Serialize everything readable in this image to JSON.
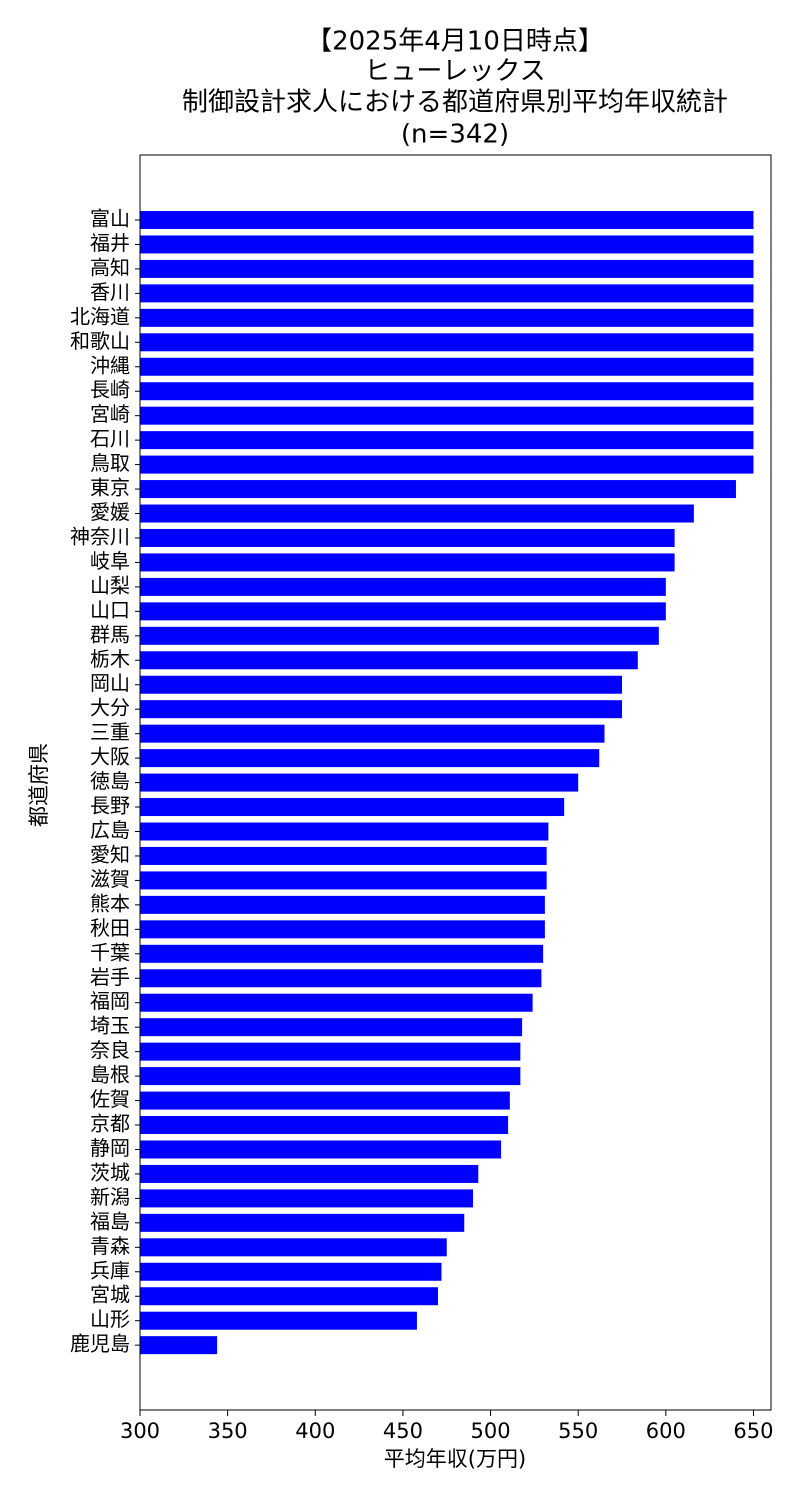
{
  "chart_data": {
    "type": "barh",
    "title": [
      "【2025年4月10日時点】",
      "ヒューレックス",
      "制御設計求人における都道府県別平均年収統計",
      "(n=342)"
    ],
    "xlabel": "平均年収(万円)",
    "ylabel": "都道府県",
    "categories": [
      "富山",
      "福井",
      "高知",
      "香川",
      "北海道",
      "和歌山",
      "沖縄",
      "長崎",
      "宮崎",
      "石川",
      "鳥取",
      "東京",
      "愛媛",
      "神奈川",
      "岐阜",
      "山梨",
      "山口",
      "群馬",
      "栃木",
      "岡山",
      "大分",
      "三重",
      "大阪",
      "徳島",
      "長野",
      "広島",
      "愛知",
      "滋賀",
      "熊本",
      "秋田",
      "千葉",
      "岩手",
      "福岡",
      "埼玉",
      "奈良",
      "島根",
      "佐賀",
      "京都",
      "静岡",
      "茨城",
      "新潟",
      "福島",
      "青森",
      "兵庫",
      "宮城",
      "山形",
      "鹿児島"
    ],
    "values": [
      650,
      650,
      650,
      650,
      650,
      650,
      650,
      650,
      650,
      650,
      650,
      640,
      616,
      605,
      605,
      600,
      600,
      596,
      584,
      575,
      575,
      565,
      562,
      550,
      542,
      533,
      532,
      532,
      531,
      531,
      530,
      529,
      524,
      518,
      517,
      517,
      511,
      510,
      506,
      493,
      490,
      485,
      475,
      472,
      470,
      458,
      344
    ],
    "color": "#0000ff",
    "xlim": [
      300,
      660
    ],
    "xticks": [
      300,
      350,
      400,
      450,
      500,
      550,
      600,
      650
    ]
  }
}
